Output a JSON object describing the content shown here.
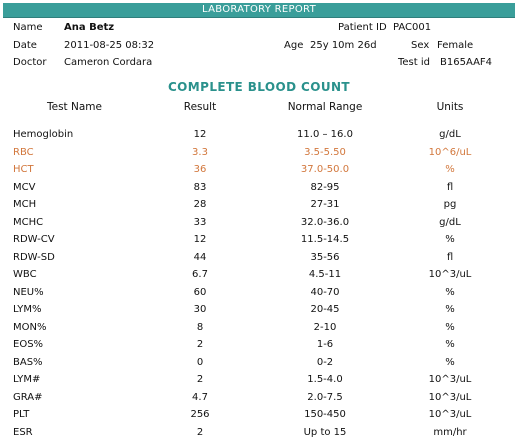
{
  "report": {
    "title": "LABORATORY REPORT",
    "name_label": "Name",
    "name": "Ana Betz",
    "patient_id_label": "Patient ID",
    "patient_id": "PAC001",
    "date_label": "Date",
    "date": "2011-08-25 08:32",
    "age_label": "Age",
    "age": "25y 10m 26d",
    "sex_label": "Sex",
    "sex": "Female",
    "doctor_label": "Doctor",
    "doctor": "Cameron Cordara",
    "test_id_label": "Test id",
    "test_id": "B165AAF4",
    "accent_color": "#3a9e9a",
    "abnormal_color": "#d2773c"
  },
  "section": {
    "title": "COMPLETE BLOOD COUNT",
    "columns": [
      "Test Name",
      "Result",
      "Normal Range",
      "Units"
    ]
  },
  "rows": [
    {
      "name": "Hemoglobin",
      "result": "12",
      "range": "11.0 – 16.0",
      "unit": "g/dL",
      "abnormal": false
    },
    {
      "name": "RBC",
      "result": "3.3",
      "range": "3.5-5.50",
      "unit": "10^6/uL",
      "abnormal": true
    },
    {
      "name": "HCT",
      "result": "36",
      "range": "37.0-50.0",
      "unit": "%",
      "abnormal": true
    },
    {
      "name": "MCV",
      "result": "83",
      "range": "82-95",
      "unit": "fl",
      "abnormal": false
    },
    {
      "name": "MCH",
      "result": "28",
      "range": "27-31",
      "unit": "pg",
      "abnormal": false
    },
    {
      "name": "MCHC",
      "result": "33",
      "range": "32.0-36.0",
      "unit": "g/dL",
      "abnormal": false
    },
    {
      "name": "RDW-CV",
      "result": "12",
      "range": "11.5-14.5",
      "unit": "%",
      "abnormal": false
    },
    {
      "name": "RDW-SD",
      "result": "44",
      "range": "35-56",
      "unit": "fl",
      "abnormal": false
    },
    {
      "name": "WBC",
      "result": "6.7",
      "range": "4.5-11",
      "unit": "10^3/uL",
      "abnormal": false
    },
    {
      "name": "NEU%",
      "result": "60",
      "range": "40-70",
      "unit": "%",
      "abnormal": false
    },
    {
      "name": "LYM%",
      "result": "30",
      "range": "20-45",
      "unit": "%",
      "abnormal": false
    },
    {
      "name": "MON%",
      "result": "8",
      "range": "2-10",
      "unit": "%",
      "abnormal": false
    },
    {
      "name": "EOS%",
      "result": "2",
      "range": "1-6",
      "unit": "%",
      "abnormal": false
    },
    {
      "name": "BAS%",
      "result": "0",
      "range": "0-2",
      "unit": "%",
      "abnormal": false
    },
    {
      "name": "LYM#",
      "result": "2",
      "range": "1.5-4.0",
      "unit": "10^3/uL",
      "abnormal": false
    },
    {
      "name": "GRA#",
      "result": "4.7",
      "range": "2.0-7.5",
      "unit": "10^3/uL",
      "abnormal": false
    },
    {
      "name": "PLT",
      "result": "256",
      "range": "150-450",
      "unit": "10^3/uL",
      "abnormal": false
    },
    {
      "name": "ESR",
      "result": "2",
      "range": "Up to 15",
      "unit": "mm/hr",
      "abnormal": false
    }
  ]
}
